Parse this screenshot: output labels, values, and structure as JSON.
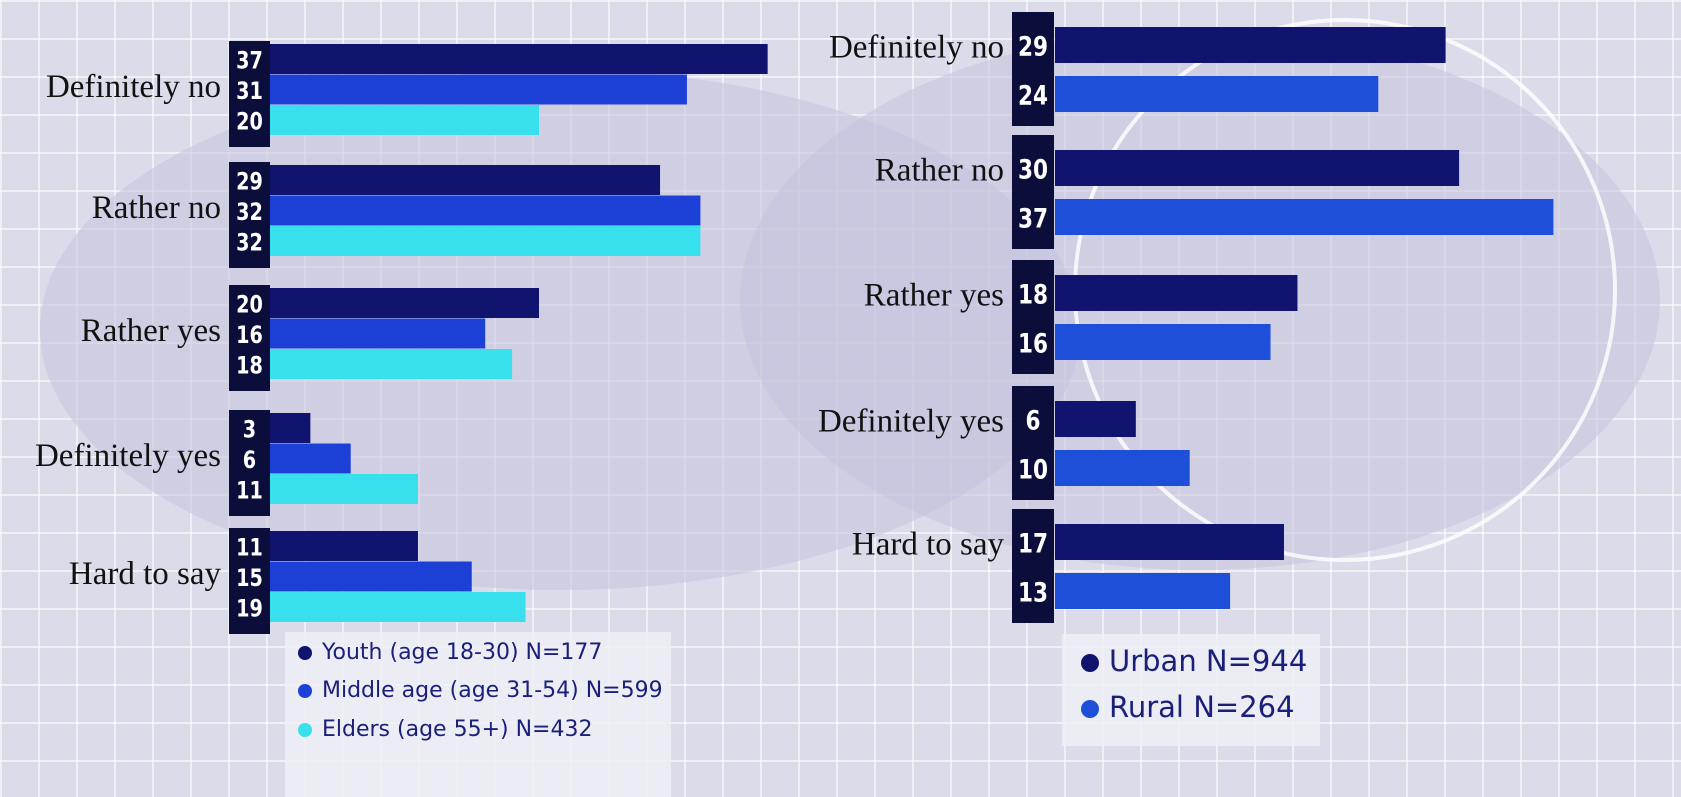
{
  "chart_data": [
    {
      "type": "bar",
      "orientation": "horizontal",
      "categories": [
        "Definitely no",
        "Rather no",
        "Rather yes",
        "Definitely yes",
        "Hard to say"
      ],
      "series": [
        {
          "name": "Youth (age 18-30) N=177",
          "color": "#10146e",
          "values": [
            37,
            29,
            20,
            3,
            11
          ]
        },
        {
          "name": "Middle age (age 31-54) N=599",
          "color": "#1c40d6",
          "values": [
            31,
            32,
            16,
            6,
            15
          ]
        },
        {
          "name": "Elders (age 55+) N=432",
          "color": "#38dfec",
          "values": [
            20,
            32,
            18,
            11,
            19
          ]
        }
      ]
    },
    {
      "type": "bar",
      "orientation": "horizontal",
      "categories": [
        "Definitely no",
        "Rather no",
        "Rather yes",
        "Definitely yes",
        "Hard to say"
      ],
      "series": [
        {
          "name": "Urban N=944",
          "color": "#10146e",
          "values": [
            29,
            30,
            18,
            6,
            17
          ]
        },
        {
          "name": "Rural N=264",
          "color": "#1d4fd8",
          "values": [
            24,
            37,
            16,
            10,
            13
          ]
        }
      ]
    }
  ]
}
